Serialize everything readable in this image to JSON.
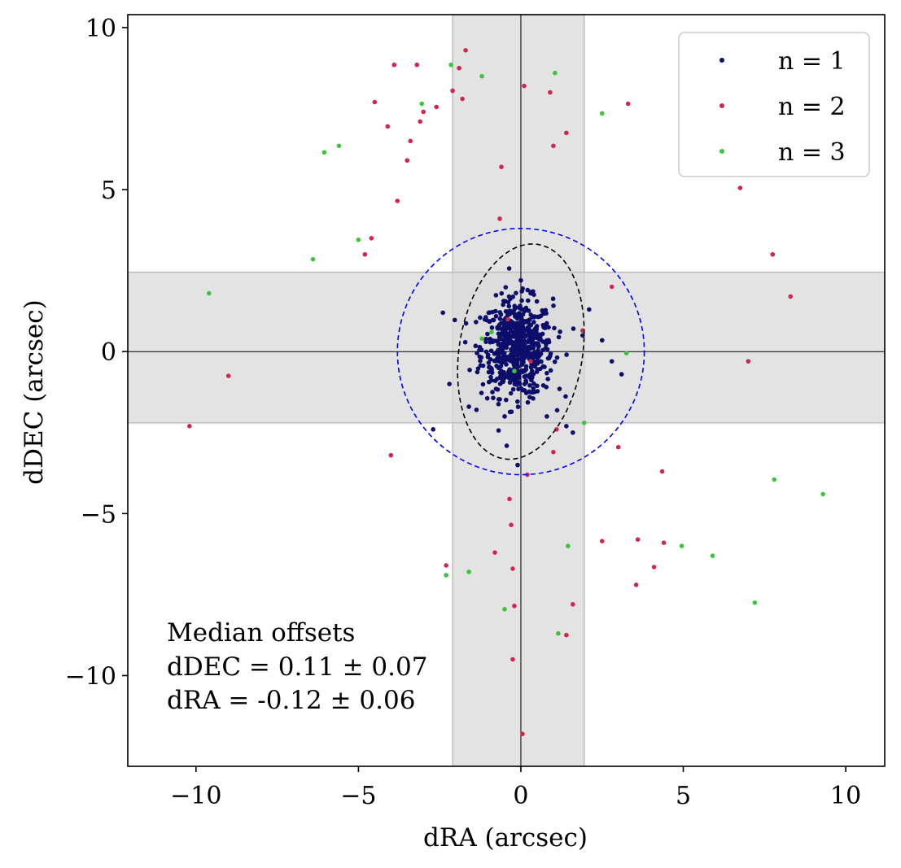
{
  "chart_data": {
    "type": "scatter",
    "title": "",
    "xlabel": "dRA (arcsec)",
    "ylabel": "dDEC (arcsec)",
    "xlim": [
      -12.1,
      11.2
    ],
    "ylim": [
      -12.8,
      10.4
    ],
    "x_ticks": [
      -10,
      -5,
      0,
      5,
      10
    ],
    "x_tick_labels": [
      "−10",
      "−5",
      "0",
      "5",
      "10"
    ],
    "y_ticks": [
      -10,
      -5,
      0,
      5,
      10
    ],
    "y_tick_labels": [
      "−10",
      "−5",
      "0",
      "5",
      "10"
    ],
    "grid": false,
    "legend_position": "top-right",
    "shaded_bands": {
      "x_range": [
        -2.1,
        1.95
      ],
      "y_range": [
        -2.2,
        2.45
      ],
      "color": "#d9d9d9"
    },
    "reference_lines": {
      "x": 0,
      "y": 0
    },
    "circle": {
      "center": [
        0,
        0
      ],
      "radius": 3.8,
      "color": "#0000ff",
      "style": "dashed"
    },
    "ellipse": {
      "center": [
        0,
        0
      ],
      "semi_axis_x": 1.9,
      "semi_axis_y": 3.35,
      "rotation_deg": 9,
      "color": "#000000",
      "style": "dashed"
    },
    "annotation": {
      "lines": [
        "Median offsets",
        "dDEC = 0.11 ± 0.07",
        "dRA = -0.12 ± 0.06"
      ],
      "position": "bottom-left"
    },
    "series": [
      {
        "name": "n = 1",
        "color": "#0d0d6b",
        "cluster": {
          "count": 620,
          "sigma_x": 0.55,
          "sigma_y": 0.75,
          "center": [
            -0.12,
            0.11
          ],
          "clip": [
            -2.5,
            2.5,
            -3.0,
            2.9
          ]
        },
        "points": [
          [
            -2.4,
            1.2
          ],
          [
            -2.2,
            -1.0
          ],
          [
            -2.7,
            -2.4
          ],
          [
            0.0,
            2.2
          ],
          [
            1.9,
            0.5
          ],
          [
            2.1,
            1.3
          ],
          [
            2.5,
            0.35
          ],
          [
            2.8,
            -0.3
          ],
          [
            3.1,
            -0.7
          ],
          [
            -0.1,
            -3.5
          ],
          [
            1.6,
            -2.5
          ],
          [
            1.4,
            -2.3
          ],
          [
            -0.5,
            -2.0
          ],
          [
            0.3,
            1.8
          ],
          [
            -1.6,
            -1.7
          ],
          [
            0.8,
            -2.0
          ]
        ]
      },
      {
        "name": "n = 2",
        "color": "#d02650",
        "points": [
          [
            -3.9,
            8.85
          ],
          [
            -3.2,
            8.85
          ],
          [
            -1.7,
            9.3
          ],
          [
            -1.9,
            8.75
          ],
          [
            -2.1,
            8.05
          ],
          [
            -1.8,
            7.8
          ],
          [
            0.1,
            8.2
          ],
          [
            0.9,
            8.0
          ],
          [
            -4.5,
            7.7
          ],
          [
            -4.1,
            6.95
          ],
          [
            -3.0,
            7.4
          ],
          [
            -3.1,
            7.1
          ],
          [
            -2.6,
            7.55
          ],
          [
            -3.4,
            6.5
          ],
          [
            -3.5,
            5.9
          ],
          [
            1.4,
            6.75
          ],
          [
            1.0,
            6.35
          ],
          [
            3.3,
            7.65
          ],
          [
            -0.6,
            5.7
          ],
          [
            -3.8,
            4.65
          ],
          [
            6.75,
            5.05
          ],
          [
            -0.65,
            4.1
          ],
          [
            -4.6,
            3.5
          ],
          [
            -4.8,
            3.0
          ],
          [
            7.75,
            3.0
          ],
          [
            8.3,
            1.7
          ],
          [
            2.8,
            2.0
          ],
          [
            7.0,
            -0.3
          ],
          [
            -9.0,
            -0.75
          ],
          [
            -10.2,
            -2.3
          ],
          [
            -4.0,
            -3.2
          ],
          [
            1.1,
            -2.4
          ],
          [
            1.0,
            -3.1
          ],
          [
            3.0,
            -2.95
          ],
          [
            0.2,
            -3.8
          ],
          [
            4.35,
            -3.7
          ],
          [
            -0.35,
            -4.55
          ],
          [
            -0.3,
            -5.35
          ],
          [
            2.5,
            -5.85
          ],
          [
            3.6,
            -5.8
          ],
          [
            4.4,
            -5.9
          ],
          [
            -0.8,
            -6.2
          ],
          [
            -0.25,
            -6.7
          ],
          [
            -2.3,
            -6.6
          ],
          [
            4.1,
            -6.65
          ],
          [
            3.55,
            -7.2
          ],
          [
            -0.2,
            -7.85
          ],
          [
            1.6,
            -7.8
          ],
          [
            1.4,
            -8.75
          ],
          [
            -0.25,
            -9.5
          ],
          [
            0.05,
            -11.8
          ],
          [
            1.9,
            0.65
          ],
          [
            -0.4,
            1.0
          ],
          [
            0.3,
            -0.3
          ]
        ]
      },
      {
        "name": "n = 3",
        "color": "#3cc43c",
        "points": [
          [
            -2.15,
            8.85
          ],
          [
            -1.2,
            8.5
          ],
          [
            1.05,
            8.6
          ],
          [
            -3.05,
            7.65
          ],
          [
            2.5,
            7.35
          ],
          [
            -5.6,
            6.35
          ],
          [
            -6.05,
            6.15
          ],
          [
            -5.0,
            3.45
          ],
          [
            -6.4,
            2.85
          ],
          [
            -9.6,
            1.8
          ],
          [
            -0.9,
            0.6
          ],
          [
            -1.2,
            0.4
          ],
          [
            3.25,
            -0.05
          ],
          [
            1.95,
            -2.2
          ],
          [
            -0.2,
            -0.6
          ],
          [
            7.8,
            -3.95
          ],
          [
            9.3,
            -4.4
          ],
          [
            1.45,
            -6.0
          ],
          [
            4.95,
            -6.0
          ],
          [
            5.9,
            -6.3
          ],
          [
            -1.6,
            -6.8
          ],
          [
            -2.3,
            -6.9
          ],
          [
            -0.5,
            -7.95
          ],
          [
            7.2,
            -7.75
          ],
          [
            1.15,
            -8.7
          ]
        ]
      }
    ]
  }
}
